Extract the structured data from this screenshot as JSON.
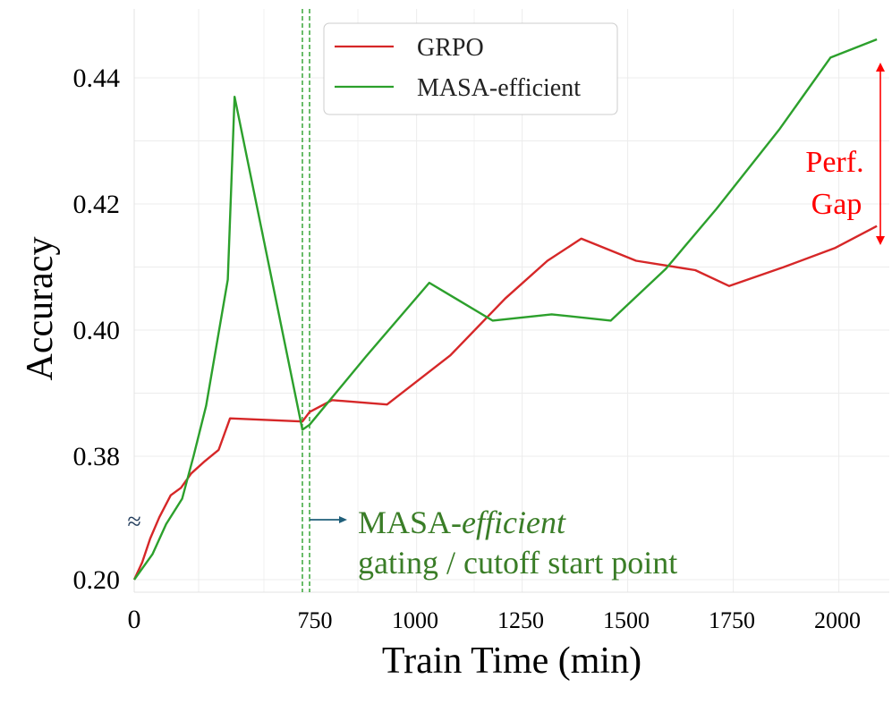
{
  "chart_data": {
    "type": "line",
    "xlabel": "Train Time (min)",
    "ylabel": "Accuracy",
    "x_ticks": [
      0,
      750,
      1000,
      1250,
      1500,
      1750,
      2000
    ],
    "x_tick_labels": [
      "0",
      "750",
      "1000",
      "1250",
      "1500",
      "1750",
      "2000"
    ],
    "y_ticks": [
      0.2,
      0.38,
      0.4,
      0.42,
      0.44
    ],
    "y_tick_labels": [
      "0.20",
      "0.38",
      "0.40",
      "0.42",
      "0.44"
    ],
    "y_break_symbol": "≈",
    "grid": true,
    "legend_position": "top-left",
    "cutoff_x": [
      737,
      757
    ],
    "series": [
      {
        "name": "GRPO",
        "color": "#d62728",
        "x": [
          0,
          35,
          70,
          110,
          160,
          205,
          250,
          310,
          370,
          420,
          737,
          757,
          800,
          930,
          1080,
          1210,
          1310,
          1390,
          1520,
          1660,
          1740,
          1870,
          1990,
          2090
        ],
        "y": [
          0.2,
          0.225,
          0.26,
          0.291,
          0.323,
          0.334,
          0.355,
          0.373,
          0.381,
          0.386,
          0.3855,
          0.387,
          0.3889,
          0.3882,
          0.396,
          0.405,
          0.411,
          0.4145,
          0.411,
          0.4095,
          0.407,
          0.41,
          0.413,
          0.4165
        ]
      },
      {
        "name": "MASA-efficient",
        "color": "#2ca02c",
        "x": [
          0,
          80,
          140,
          210,
          260,
          315,
          410,
          440,
          737,
          760,
          880,
          1030,
          1180,
          1320,
          1460,
          1590,
          1710,
          1860,
          1980,
          2090
        ],
        "y": [
          0.2,
          0.237,
          0.281,
          0.318,
          0.38,
          0.388,
          0.408,
          0.437,
          0.3842,
          0.385,
          0.3958,
          0.4075,
          0.4015,
          0.4025,
          0.4015,
          0.4097,
          0.4192,
          0.4319,
          0.4432,
          0.4461
        ]
      }
    ],
    "annotations": {
      "gap_line1": "Perf.",
      "gap_line2": "Gap",
      "gap_color": "#ff0000",
      "cutoff_prefix": "MASA-",
      "cutoff_italic": "efficient",
      "cutoff_line2": "gating / cutoff start point",
      "cutoff_text_color": "#3a7d27",
      "cutoff_arrow_color": "#1f5f7a"
    }
  }
}
